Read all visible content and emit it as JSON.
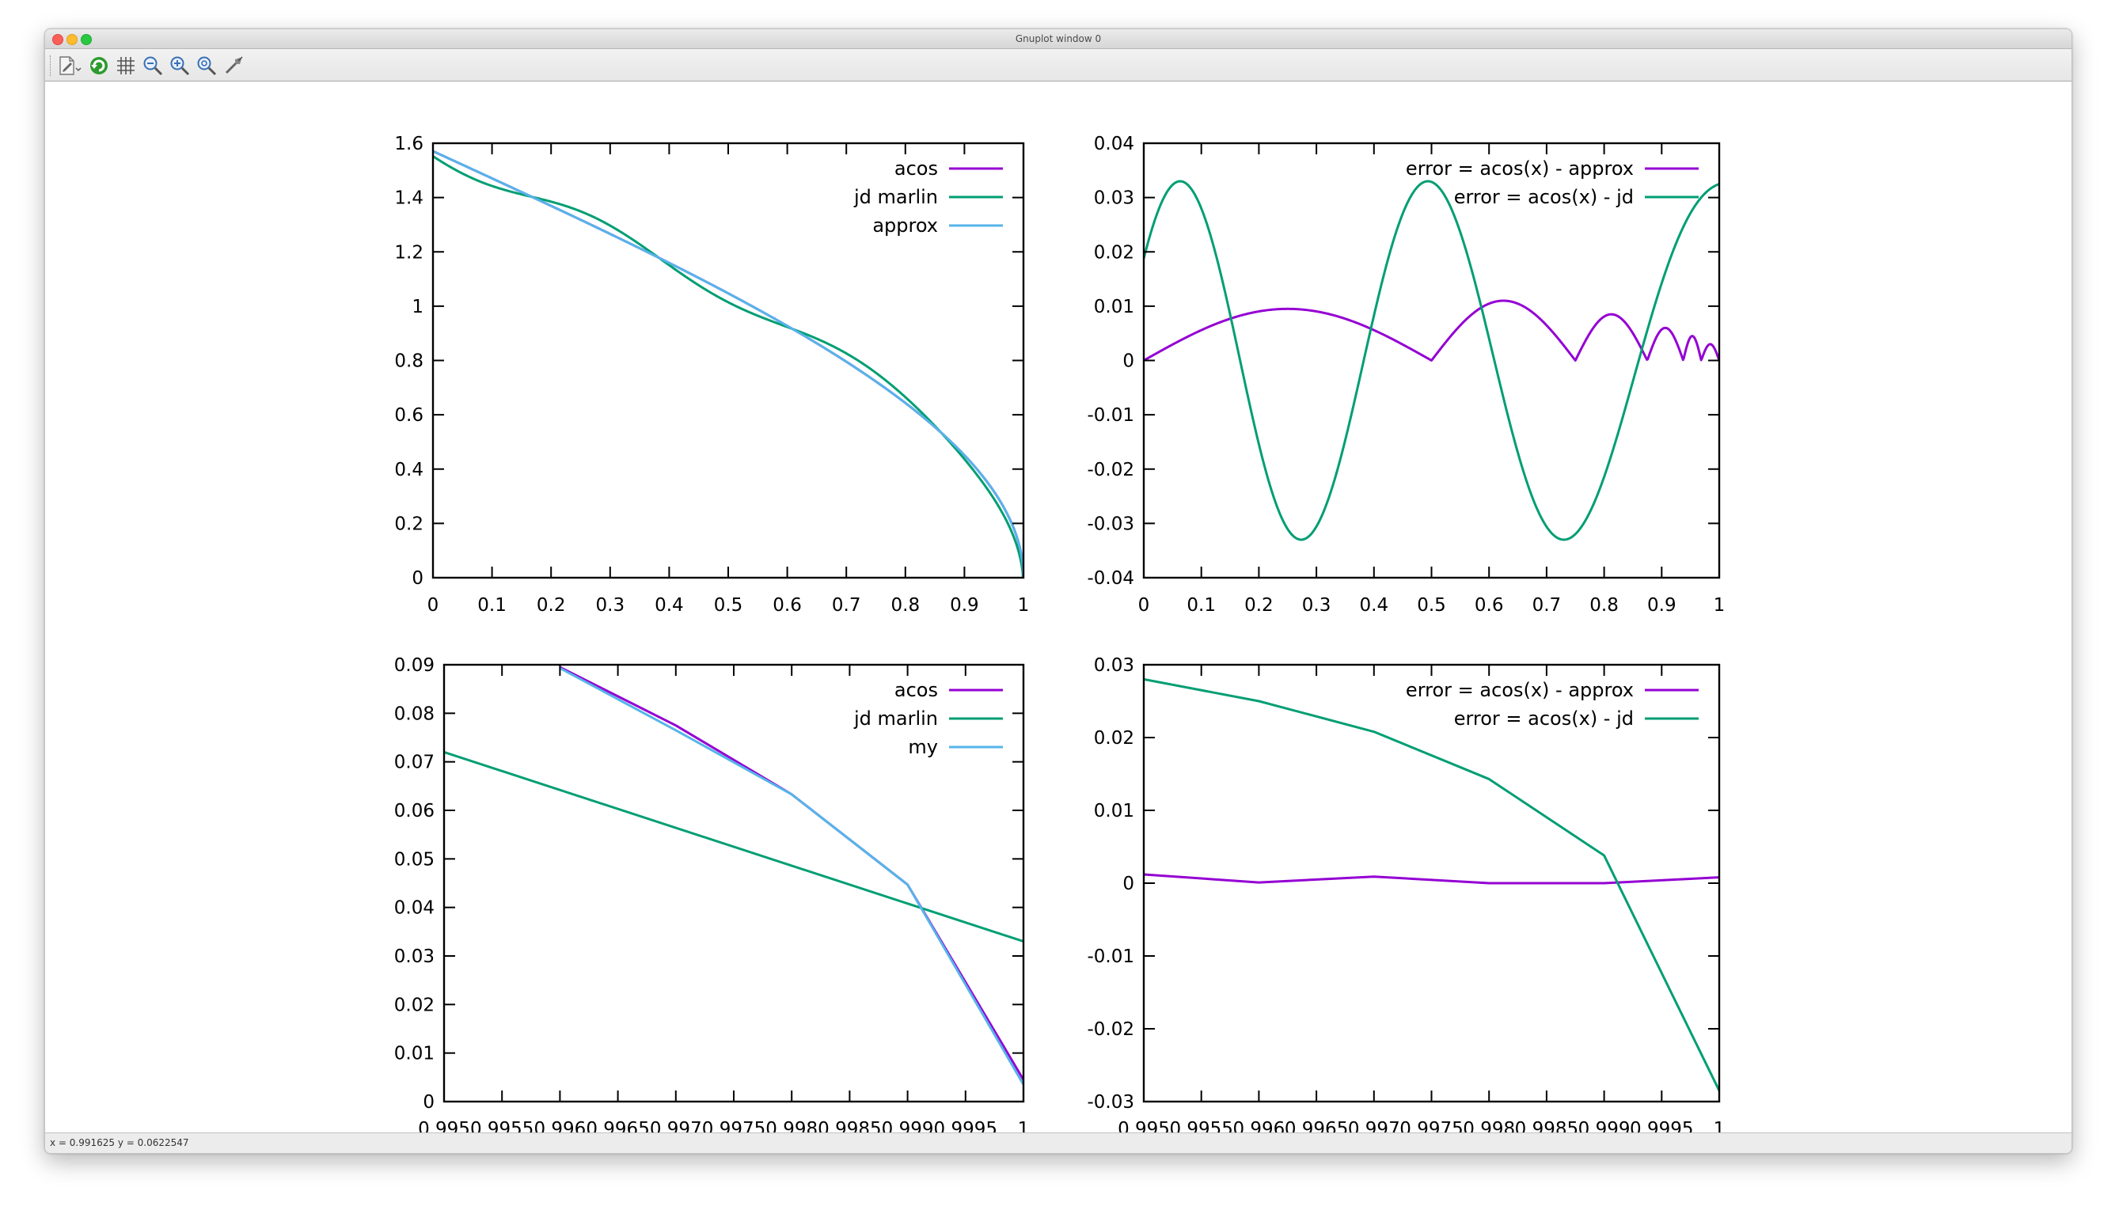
{
  "window": {
    "title": "Gnuplot window 0"
  },
  "status": {
    "text": "x = 0.991625 y = 0.0622547"
  },
  "toolbar": {
    "icons": [
      "export-icon",
      "replot-icon",
      "grid-icon",
      "zoom-out-icon",
      "zoom-in-icon",
      "zoom-reset-icon",
      "settings-icon"
    ]
  },
  "colors": {
    "purple": "#9400d3",
    "green": "#009e73",
    "blue": "#56b4e9"
  },
  "chart_data": [
    {
      "type": "line",
      "xlim": [
        0,
        1
      ],
      "ylim": [
        0,
        1.6
      ],
      "xticks": [
        "0",
        "0.1",
        "0.2",
        "0.3",
        "0.4",
        "0.5",
        "0.6",
        "0.7",
        "0.8",
        "0.9",
        "1"
      ],
      "yticks": [
        "0",
        "0.2",
        "0.4",
        "0.6",
        "0.8",
        "1",
        "1.2",
        "1.4",
        "1.6"
      ],
      "legend_position": "top-right",
      "series": [
        {
          "name": "acos",
          "color": "#9400d3",
          "width": 3,
          "function": "acos"
        },
        {
          "name": "jd marlin",
          "color": "#009e73",
          "width": 3,
          "function": "jd"
        },
        {
          "name": "approx",
          "color": "#56b4e9",
          "width": 3,
          "function": "approx"
        }
      ]
    },
    {
      "type": "line",
      "xlim": [
        0,
        1
      ],
      "ylim": [
        -0.04,
        0.04
      ],
      "xticks": [
        "0",
        "0.1",
        "0.2",
        "0.3",
        "0.4",
        "0.5",
        "0.6",
        "0.7",
        "0.8",
        "0.9",
        "1"
      ],
      "yticks": [
        "-0.04",
        "-0.03",
        "-0.02",
        "-0.01",
        "0",
        "0.01",
        "0.02",
        "0.03",
        "0.04"
      ],
      "legend_position": "top-right",
      "series": [
        {
          "name": "error = acos(x) - approx",
          "color": "#9400d3",
          "width": 3,
          "function": "err_approx"
        },
        {
          "name": "error = acos(x) - jd",
          "color": "#009e73",
          "width": 3,
          "function": "err_jd"
        }
      ]
    },
    {
      "type": "line",
      "xlim": [
        0.995,
        1
      ],
      "ylim": [
        0,
        0.09
      ],
      "xticks": [
        "0.995",
        "0.9955",
        "0.996",
        "0.9965",
        "0.997",
        "0.9975",
        "0.998",
        "0.9985",
        "0.999",
        "0.9995",
        "1"
      ],
      "yticks": [
        "0",
        "0.01",
        "0.02",
        "0.03",
        "0.04",
        "0.05",
        "0.06",
        "0.07",
        "0.08",
        "0.09"
      ],
      "legend_position": "top-right",
      "series": [
        {
          "name": "acos",
          "color": "#9400d3",
          "width": 3,
          "x": [
            0.996,
            0.997,
            0.998,
            0.999,
            1.0
          ],
          "y": [
            0.0895,
            0.0775,
            0.0633,
            0.0447,
            0.0045
          ]
        },
        {
          "name": "jd marlin",
          "color": "#009e73",
          "width": 3,
          "x": [
            0.995,
            1.0
          ],
          "y": [
            0.072,
            0.033
          ]
        },
        {
          "name": "my",
          "color": "#56b4e9",
          "width": 3,
          "x": [
            0.996,
            0.997,
            0.998,
            0.999,
            1.0
          ],
          "y": [
            0.0893,
            0.0765,
            0.0633,
            0.0447,
            0.0035
          ]
        }
      ]
    },
    {
      "type": "line",
      "xlim": [
        0.995,
        1
      ],
      "ylim": [
        -0.03,
        0.03
      ],
      "xticks": [
        "0.995",
        "0.9955",
        "0.996",
        "0.9965",
        "0.997",
        "0.9975",
        "0.998",
        "0.9985",
        "0.999",
        "0.9995",
        "1"
      ],
      "yticks": [
        "-0.03",
        "-0.02",
        "-0.01",
        "0",
        "0.01",
        "0.02",
        "0.03"
      ],
      "legend_position": "top-right",
      "series": [
        {
          "name": "error = acos(x) - approx",
          "color": "#9400d3",
          "width": 3,
          "x": [
            0.995,
            0.996,
            0.997,
            0.998,
            0.999,
            1.0
          ],
          "y": [
            0.0012,
            0.0001,
            0.0009,
            0.0,
            0.0,
            0.0008
          ]
        },
        {
          "name": "error = acos(x) - jd",
          "color": "#009e73",
          "width": 3,
          "x": [
            0.995,
            0.996,
            0.997,
            0.998,
            0.999,
            1.0
          ],
          "y": [
            0.028,
            0.025,
            0.0208,
            0.0143,
            0.0038,
            -0.0285
          ]
        }
      ]
    }
  ]
}
